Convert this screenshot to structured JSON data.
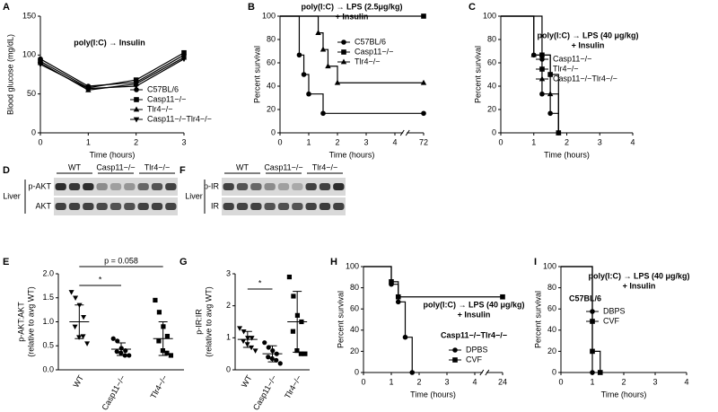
{
  "chart_data": [
    {
      "panel": "A",
      "type": "line",
      "title": "poly(I:C) → Insulin",
      "xlabel": "Time (hours)",
      "ylabel": "Blood glucose (mg/dL)",
      "color": "#000000",
      "x": [
        0,
        1,
        2,
        3
      ],
      "xlim": [
        0,
        3
      ],
      "xticks": [
        0,
        1,
        2,
        3
      ],
      "ylim": [
        0,
        150
      ],
      "yticks": [
        0,
        50,
        100,
        150
      ],
      "legend": "lower right",
      "series": [
        {
          "name": "C57BL/6",
          "marker": "circle",
          "values": [
            95,
            60,
            65,
            100
          ]
        },
        {
          "name": "Casp11−/−",
          "marker": "square",
          "values": [
            92,
            58,
            68,
            103
          ]
        },
        {
          "name": "Tlr4−/−",
          "marker": "triangle",
          "values": [
            90,
            55,
            63,
            97
          ]
        },
        {
          "name": "Casp11−/−Tlr4−/−",
          "marker": "triangle-down",
          "values": [
            88,
            57,
            60,
            95
          ]
        }
      ]
    },
    {
      "panel": "B",
      "type": "step",
      "title": "poly(I:C) → LPS (2.5μg/kg)",
      "subtitle": "+ Insulin",
      "xlabel": "Time (hours)",
      "ylabel": "Percent survival",
      "color": "#000000",
      "xlim": [
        0,
        72
      ],
      "xticks": [
        0,
        1,
        2,
        3,
        4,
        72
      ],
      "ylim": [
        0,
        100
      ],
      "yticks": [
        0,
        20,
        40,
        60,
        80,
        100
      ],
      "legend": "upper right",
      "series": [
        {
          "name": "C57BL/6",
          "marker": "circle",
          "x": [
            0,
            0.67,
            0.83,
            1,
            1.5,
            72
          ],
          "values": [
            100,
            66.7,
            50,
            33.3,
            16.7,
            16.7
          ]
        },
        {
          "name": "Casp11−/−",
          "marker": "square",
          "x": [
            0,
            72
          ],
          "values": [
            100,
            100
          ]
        },
        {
          "name": "Tlr4−/−",
          "marker": "triangle",
          "x": [
            0,
            1.33,
            1.5,
            1.67,
            2,
            72
          ],
          "values": [
            100,
            85.7,
            71.4,
            57.1,
            42.9,
            42.9
          ]
        }
      ]
    },
    {
      "panel": "C",
      "type": "step",
      "title": "poly(I:C) → LPS (40 μg/kg)",
      "subtitle": "+ Insulin",
      "xlabel": "Time (hours)",
      "ylabel": "Percent survival",
      "color": "#000000",
      "xlim": [
        0,
        4
      ],
      "xticks": [
        0,
        1,
        2,
        3,
        4
      ],
      "ylim": [
        0,
        100
      ],
      "yticks": [
        0,
        20,
        40,
        60,
        80,
        100
      ],
      "legend": "upper right",
      "series": [
        {
          "name": "Casp11−/−",
          "marker": "circle",
          "x": [
            0,
            1,
            1.25,
            1.5,
            1.75
          ],
          "values": [
            100,
            66.7,
            33.3,
            16.7,
            0
          ]
        },
        {
          "name": "Tlr4−/−",
          "marker": "square",
          "x": [
            0,
            1.25,
            1.5,
            1.75
          ],
          "values": [
            100,
            66.7,
            50,
            0
          ]
        },
        {
          "name": "Casp11−/−Tlr4−/−",
          "marker": "triangle",
          "x": [
            0,
            1,
            1.5,
            1.75
          ],
          "values": [
            100,
            66.7,
            33.3,
            0
          ]
        }
      ]
    },
    {
      "panel": "E",
      "type": "scatter",
      "ylabel": [
        "p-AKT:AKT",
        "(relative to avg WT)"
      ],
      "color": "#000000",
      "categories": [
        "WT",
        "Casp11−/−",
        "Tlr4−/−"
      ],
      "markers": [
        "triangle-down",
        "circle",
        "square"
      ],
      "values": [
        [
          1.62,
          1.5,
          1.35,
          1.1,
          0.9,
          0.68,
          0.7,
          0.55
        ],
        [
          0.65,
          0.6,
          0.45,
          0.4,
          0.38,
          0.35,
          0.3,
          0.3
        ],
        [
          1.45,
          1.2,
          0.9,
          0.7,
          0.6,
          0.4,
          0.35,
          0.3
        ]
      ],
      "means": [
        1.0,
        0.43,
        0.65
      ],
      "sds": [
        0.35,
        0.13,
        0.35
      ],
      "ylim": [
        0,
        2
      ],
      "yticks": [
        {
          "value": 0,
          "label": "0.0"
        },
        {
          "value": 0.5,
          "label": "0.5"
        },
        {
          "value": 1,
          "label": "1.0"
        },
        {
          "value": 1.5,
          "label": "1.5"
        },
        {
          "value": 2,
          "label": "2.0"
        }
      ],
      "annotations": [
        "p = 0.058",
        "*"
      ]
    },
    {
      "panel": "G",
      "type": "scatter",
      "ylabel": [
        "p-IR:IR",
        "(relative to avg WT)"
      ],
      "color": "#000000",
      "categories": [
        "WT",
        "Casp11−/−",
        "Tlr4−/−"
      ],
      "markers": [
        "triangle-down",
        "circle",
        "square"
      ],
      "values": [
        [
          1.3,
          1.2,
          1.0,
          1.0,
          0.9,
          0.8,
          0.7,
          0.6
        ],
        [
          0.85,
          0.7,
          0.6,
          0.5,
          0.4,
          0.35,
          0.3,
          0.2
        ],
        [
          2.9,
          2.3,
          1.7,
          1.5,
          1.2,
          0.6,
          0.5,
          0.5
        ]
      ],
      "means": [
        0.95,
        0.5,
        1.5
      ],
      "sds": [
        0.25,
        0.25,
        0.95
      ],
      "ylim": [
        0,
        3
      ],
      "yticks": [
        0,
        1,
        2,
        3
      ],
      "annotations": [
        "*"
      ]
    },
    {
      "panel": "H",
      "type": "step",
      "title": "poly(I:C) → LPS (40 μg/kg)",
      "subtitle": "+ Insulin",
      "legend_title": "Casp11−/−Tlr4−/−",
      "xlabel": "Time (hours)",
      "ylabel": "Percent survival",
      "color": "#000000",
      "xlim": [
        0,
        24
      ],
      "xticks": [
        0,
        1,
        2,
        3,
        4,
        24
      ],
      "ylim": [
        0,
        100
      ],
      "yticks": [
        0,
        20,
        40,
        60,
        80,
        100
      ],
      "legend": "lower right",
      "series": [
        {
          "name": "DPBS",
          "marker": "circle",
          "x": [
            0,
            1,
            1.25,
            1.5,
            1.75
          ],
          "values": [
            100,
            83.3,
            66.7,
            33.3,
            0
          ]
        },
        {
          "name": "CVF",
          "marker": "square",
          "x": [
            0,
            1,
            1.25,
            24
          ],
          "values": [
            100,
            85.7,
            71.4,
            71.4
          ]
        }
      ]
    },
    {
      "panel": "I",
      "type": "step",
      "title": "poly(I:C) → LPS (40 μg/kg)",
      "subtitle": "+ Insulin",
      "legend_title": "C57BL/6",
      "xlabel": "Time (hours)",
      "ylabel": "Percent survival",
      "color": "#000000",
      "xlim": [
        0,
        4
      ],
      "xticks": [
        0,
        1,
        2,
        3,
        4
      ],
      "ylim": [
        0,
        100
      ],
      "yticks": [
        0,
        20,
        40,
        60,
        80,
        100
      ],
      "legend": "upper right",
      "series": [
        {
          "name": "DBPS",
          "marker": "circle",
          "x": [
            0,
            1
          ],
          "values": [
            100,
            0
          ]
        },
        {
          "name": "CVF",
          "marker": "square",
          "x": [
            0,
            1,
            1.25
          ],
          "values": [
            100,
            20,
            0
          ]
        }
      ]
    }
  ],
  "blots": [
    {
      "panel": "D",
      "tissue": "Liver",
      "groups": [
        "WT",
        "Casp11−/−",
        "Tlr4−/−"
      ],
      "rows": [
        "p-AKT",
        "AKT"
      ]
    },
    {
      "panel": "F",
      "tissue": "Liver",
      "groups": [
        "WT",
        "Casp11−/−",
        "Tlr4−/−"
      ],
      "rows": [
        "p-IR",
        "IR"
      ]
    }
  ]
}
